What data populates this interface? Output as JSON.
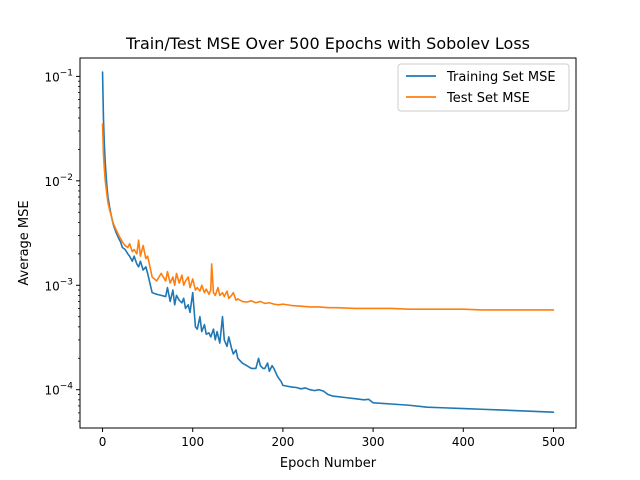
{
  "chart_data": {
    "type": "line",
    "title": "Train/Test MSE Over 500 Epochs with Sobolev Loss",
    "xlabel": "Epoch Number",
    "ylabel": "Average MSE",
    "yscale": "log",
    "xlim": [
      -25,
      525
    ],
    "ylim": [
      4.3e-05,
      0.15
    ],
    "xticks": [
      0,
      100,
      200,
      300,
      400,
      500
    ],
    "xtick_labels": [
      "0",
      "100",
      "200",
      "300",
      "400",
      "500"
    ],
    "yticks": [
      0.0001,
      0.001,
      0.01,
      0.1
    ],
    "ytick_labels": [
      {
        "base": "10",
        "exp": "−4"
      },
      {
        "base": "10",
        "exp": "−3"
      },
      {
        "base": "10",
        "exp": "−2"
      },
      {
        "base": "10",
        "exp": "−1"
      }
    ],
    "grid": false,
    "legend_position": "top-right",
    "series": [
      {
        "name": "Training Set MSE",
        "color": "#1f77b4",
        "x": [
          0,
          1,
          2,
          3,
          4,
          5,
          6,
          8,
          10,
          12,
          15,
          18,
          20,
          22,
          25,
          28,
          30,
          33,
          35,
          38,
          40,
          42,
          45,
          48,
          50,
          55,
          60,
          65,
          70,
          72,
          75,
          78,
          80,
          82,
          85,
          88,
          90,
          92,
          95,
          97,
          100,
          103,
          105,
          108,
          110,
          113,
          115,
          118,
          120,
          123,
          125,
          127,
          130,
          133,
          135,
          138,
          140,
          143,
          145,
          148,
          150,
          155,
          160,
          165,
          170,
          173,
          175,
          178,
          180,
          183,
          185,
          188,
          190,
          193,
          195,
          198,
          200,
          205,
          210,
          215,
          220,
          225,
          230,
          235,
          240,
          245,
          250,
          255,
          260,
          270,
          280,
          290,
          295,
          300,
          320,
          340,
          360,
          380,
          400,
          420,
          440,
          460,
          480,
          500
        ],
        "y": [
          0.11,
          0.04,
          0.022,
          0.015,
          0.011,
          0.0085,
          0.007,
          0.0055,
          0.0045,
          0.0038,
          0.0032,
          0.0028,
          0.0026,
          0.0023,
          0.0022,
          0.002,
          0.0019,
          0.0017,
          0.0019,
          0.0016,
          0.0015,
          0.0017,
          0.0014,
          0.0015,
          0.0013,
          0.00085,
          0.00082,
          0.0008,
          0.00078,
          0.00095,
          0.0007,
          0.0009,
          0.00065,
          0.0008,
          0.00072,
          0.00068,
          0.00075,
          0.0006,
          0.00065,
          0.00055,
          0.00085,
          0.0004,
          0.00038,
          0.0005,
          0.00036,
          0.00042,
          0.00034,
          0.00035,
          0.00032,
          0.00038,
          0.0003,
          0.00036,
          0.00028,
          0.0005,
          0.0003,
          0.00026,
          0.00032,
          0.00025,
          0.00022,
          0.00024,
          0.0002,
          0.00018,
          0.00017,
          0.00016,
          0.00016,
          0.0002,
          0.00017,
          0.00016,
          0.00016,
          0.00018,
          0.00015,
          0.00017,
          0.00016,
          0.00014,
          0.00013,
          0.00012,
          0.00011,
          0.000108,
          0.000106,
          0.000105,
          0.000102,
          0.000104,
          0.0001,
          9.8e-05,
          0.0001,
          9.7e-05,
          9e-05,
          8.7e-05,
          8.6e-05,
          8.4e-05,
          8.2e-05,
          8e-05,
          8.1e-05,
          7.5e-05,
          7.3e-05,
          7.1e-05,
          6.8e-05,
          6.7e-05,
          6.6e-05,
          6.5e-05,
          6.4e-05,
          6.3e-05,
          6.2e-05,
          6.1e-05
        ]
      },
      {
        "name": "Test Set MSE",
        "color": "#ff7f0e",
        "x": [
          0,
          1,
          2,
          3,
          4,
          5,
          6,
          8,
          10,
          12,
          15,
          18,
          20,
          22,
          25,
          28,
          30,
          33,
          35,
          38,
          40,
          42,
          45,
          48,
          50,
          55,
          60,
          65,
          70,
          72,
          75,
          78,
          80,
          82,
          85,
          88,
          90,
          92,
          95,
          97,
          100,
          103,
          105,
          108,
          110,
          113,
          115,
          118,
          120,
          121,
          123,
          125,
          128,
          130,
          133,
          135,
          138,
          140,
          143,
          145,
          148,
          150,
          155,
          160,
          165,
          170,
          175,
          180,
          185,
          190,
          195,
          200,
          210,
          220,
          230,
          240,
          250,
          260,
          280,
          300,
          320,
          340,
          360,
          380,
          400,
          420,
          440,
          460,
          480,
          500
        ],
        "y": [
          0.035,
          0.018,
          0.013,
          0.01,
          0.0085,
          0.0072,
          0.0062,
          0.0052,
          0.0045,
          0.0039,
          0.0034,
          0.003,
          0.0028,
          0.0026,
          0.0024,
          0.0023,
          0.0025,
          0.0021,
          0.0022,
          0.002,
          0.0027,
          0.0019,
          0.0024,
          0.0018,
          0.0019,
          0.0012,
          0.0011,
          0.0013,
          0.0011,
          0.00135,
          0.00105,
          0.0012,
          0.001,
          0.0013,
          0.00105,
          0.00125,
          0.001,
          0.0011,
          0.0012,
          0.00095,
          0.00115,
          0.0009,
          0.00095,
          0.00088,
          0.001,
          0.00085,
          0.00092,
          0.00082,
          0.0009,
          0.0016,
          0.00085,
          0.0008,
          0.00095,
          0.0008,
          0.00085,
          0.00078,
          0.00088,
          0.00075,
          0.0008,
          0.00085,
          0.00072,
          0.00074,
          0.0007,
          0.00069,
          0.00071,
          0.00068,
          0.0007,
          0.00067,
          0.00068,
          0.00066,
          0.00065,
          0.00066,
          0.00064,
          0.00063,
          0.00062,
          0.00062,
          0.00061,
          0.00061,
          0.0006,
          0.0006,
          0.0006,
          0.00059,
          0.00059,
          0.00059,
          0.00059,
          0.00058,
          0.00058,
          0.00058,
          0.00058,
          0.00058
        ]
      }
    ]
  }
}
